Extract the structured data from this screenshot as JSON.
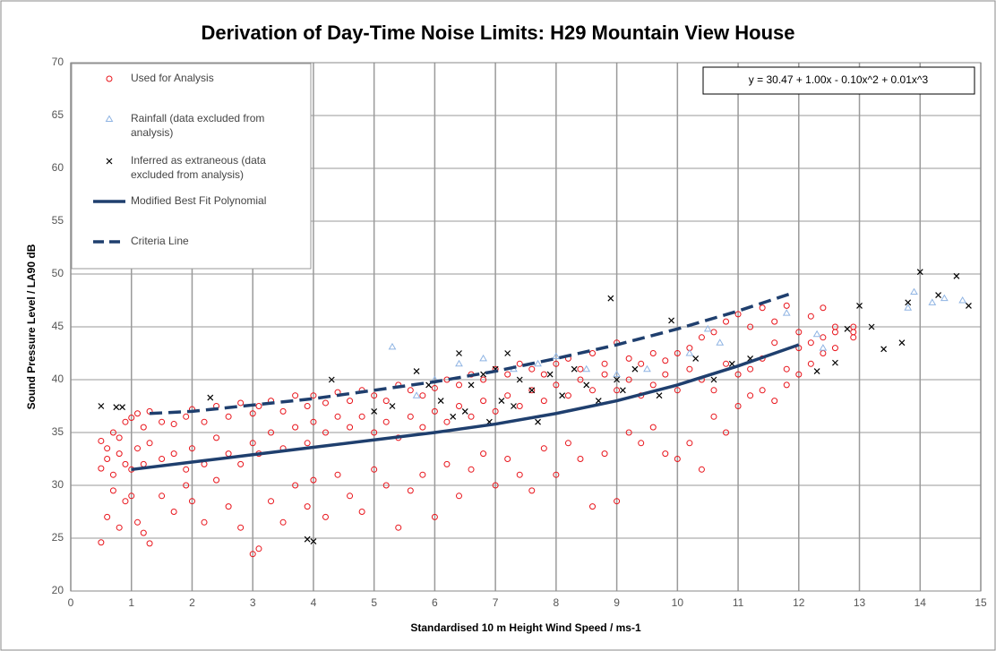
{
  "chart_data": {
    "type": "scatter",
    "title": "Derivation of Day-Time Noise Limits: H29 Mountain View House",
    "x_label": "Standardised 10 m Height Wind Speed / ms-1",
    "y_label": "Sound Pressure Level / LA90 dB",
    "annotation": "y = 30.47 + 1.00x - 0.10x^2 + 0.01x^3",
    "xlim": [
      0,
      15
    ],
    "xticks": [
      0,
      1,
      2,
      3,
      4,
      5,
      6,
      7,
      8,
      9,
      10,
      11,
      12,
      13,
      14,
      15
    ],
    "ylim": [
      20,
      70
    ],
    "yticks": [
      20,
      25,
      30,
      35,
      40,
      45,
      50,
      55,
      60,
      65,
      70
    ],
    "grid": true,
    "legend": "top-left",
    "series": [
      {
        "name": "Used for Analysis",
        "color": "#e8141b",
        "marker": "circle",
        "x": [
          0.5,
          0.6,
          0.7,
          0.8,
          0.9,
          1.0,
          1.1,
          1.2,
          1.3,
          1.5,
          1.7,
          1.9,
          2.0,
          2.2,
          2.4,
          2.6,
          2.8,
          3.0,
          3.1,
          3.3,
          3.5,
          3.7,
          3.9,
          4.0,
          4.2,
          4.4,
          4.6,
          4.8,
          5.0,
          5.2,
          5.4,
          5.6,
          5.8,
          6.0,
          6.2,
          6.4,
          6.6,
          6.8,
          7.0,
          7.2,
          7.4,
          7.6,
          7.8,
          8.0,
          8.2,
          8.4,
          8.6,
          8.8,
          9.0,
          9.2,
          9.4,
          9.6,
          9.8,
          10.0,
          10.2,
          10.4,
          10.6,
          10.8,
          11.0,
          11.2,
          11.4,
          11.6,
          11.8,
          12.0,
          12.2,
          12.4,
          12.6,
          12.9,
          0.5,
          0.6,
          0.7,
          0.8,
          0.9,
          1.0,
          1.1,
          1.2,
          1.3,
          1.5,
          1.7,
          1.9,
          2.0,
          2.2,
          2.4,
          2.6,
          2.8,
          3.0,
          3.1,
          3.3,
          3.5,
          3.7,
          3.9,
          4.0,
          4.2,
          4.4,
          4.6,
          4.8,
          5.0,
          5.2,
          5.4,
          5.6,
          5.8,
          6.0,
          6.2,
          6.4,
          6.6,
          6.8,
          7.0,
          7.2,
          7.4,
          7.6,
          7.8,
          8.0,
          8.2,
          8.4,
          8.6,
          8.8,
          9.0,
          9.2,
          9.4,
          9.6,
          9.8,
          10.0,
          10.2,
          10.4,
          10.6,
          10.8,
          11.0,
          11.2,
          11.4,
          11.6,
          11.8,
          12.0,
          12.2,
          12.4,
          12.6,
          12.9,
          0.5,
          0.6,
          0.7,
          0.8,
          0.9,
          1.0,
          1.1,
          1.2,
          1.3,
          1.5,
          1.7,
          1.9,
          2.0,
          2.2,
          2.4,
          2.6,
          2.8,
          3.0,
          3.1,
          3.3,
          3.5,
          3.7,
          3.9,
          4.0,
          4.2,
          4.4,
          4.6,
          4.8,
          5.0,
          5.2,
          5.4,
          5.6,
          5.8,
          6.0,
          6.2,
          6.4,
          6.6,
          6.8,
          7.0,
          7.2,
          7.4,
          7.6,
          7.8,
          8.0,
          8.2,
          8.4,
          8.6,
          8.8,
          9.0,
          9.2,
          9.4,
          9.6,
          9.8,
          10.0,
          10.2,
          10.4,
          10.6,
          10.8,
          11.0,
          11.2,
          11.4,
          11.6,
          11.8,
          12.0,
          12.2,
          12.4,
          12.6,
          12.9
        ],
        "values": [
          34.2,
          33.5,
          35.0,
          34.5,
          36.0,
          36.4,
          36.8,
          35.5,
          37.0,
          36.0,
          35.8,
          36.5,
          37.2,
          36.0,
          37.5,
          36.5,
          37.8,
          36.8,
          37.5,
          38.0,
          37.0,
          38.5,
          37.5,
          38.5,
          37.8,
          38.8,
          38.0,
          39.0,
          38.5,
          38.0,
          39.5,
          39.0,
          38.5,
          39.2,
          40.0,
          39.5,
          40.5,
          40.0,
          41.0,
          40.5,
          41.5,
          41.0,
          40.5,
          41.5,
          42.0,
          41.0,
          42.5,
          41.5,
          43.5,
          42.0,
          41.5,
          42.5,
          41.8,
          42.5,
          43.0,
          44.0,
          44.5,
          45.5,
          46.2,
          45.0,
          46.8,
          45.5,
          47.0,
          44.5,
          46.0,
          46.8,
          45.0,
          44.5,
          31.6,
          32.5,
          31.0,
          33.0,
          32.0,
          31.5,
          33.5,
          32.0,
          34.0,
          32.5,
          33.0,
          31.5,
          33.5,
          32.0,
          34.5,
          33.0,
          32.0,
          34.0,
          33.0,
          35.0,
          33.5,
          35.5,
          34.0,
          36.0,
          35.0,
          36.5,
          35.5,
          36.5,
          35.0,
          36.0,
          34.5,
          36.5,
          35.5,
          37.0,
          36.0,
          37.5,
          36.5,
          38.0,
          37.0,
          38.5,
          37.5,
          39.0,
          38.0,
          39.5,
          38.5,
          40.0,
          39.0,
          40.5,
          39.0,
          40.0,
          38.5,
          39.5,
          40.5,
          39.0,
          41.0,
          40.0,
          39.0,
          41.5,
          40.5,
          41.0,
          42.0,
          43.5,
          41.0,
          43.0,
          43.5,
          44.0,
          44.5,
          45.0,
          24.6,
          27.0,
          29.5,
          26.0,
          28.5,
          29.0,
          26.5,
          25.5,
          24.5,
          29.0,
          27.5,
          30.0,
          28.5,
          26.5,
          30.5,
          28.0,
          26.0,
          23.5,
          24.0,
          28.5,
          26.5,
          30.0,
          28.0,
          30.5,
          27.0,
          31.0,
          29.0,
          27.5,
          31.5,
          30.0,
          26.0,
          29.5,
          31.0,
          27.0,
          32.0,
          29.0,
          31.5,
          33.0,
          30.0,
          32.5,
          31.0,
          29.5,
          33.5,
          31.0,
          34.0,
          32.5,
          28.0,
          33.0,
          28.5,
          35.0,
          34.0,
          35.5,
          33.0,
          32.5,
          34.0,
          31.5,
          36.5,
          35.0,
          37.5,
          38.5,
          39.0,
          38.0,
          39.5,
          40.5,
          41.5,
          42.5,
          43.0,
          44.0
        ]
      },
      {
        "name": "Rainfall (data excluded from analysis)",
        "color": "#8fb4e3",
        "marker": "triangle",
        "x": [
          5.3,
          5.7,
          6.0,
          6.4,
          6.8,
          7.3,
          7.7,
          8.0,
          8.5,
          9.0,
          9.5,
          10.2,
          10.5,
          10.7,
          11.8,
          12.3,
          12.4,
          13.8,
          13.9,
          14.2,
          14.4,
          14.7
        ],
        "values": [
          43.1,
          38.5,
          40.0,
          41.5,
          42.0,
          41.0,
          41.5,
          42.2,
          41.0,
          40.5,
          41.0,
          42.5,
          44.8,
          43.5,
          46.3,
          44.3,
          43.0,
          46.8,
          48.3,
          47.3,
          47.7,
          47.5
        ]
      },
      {
        "name": "Inferred as extraneous (data excluded from analysis)",
        "color": "#000000",
        "marker": "x",
        "x": [
          0.5,
          0.75,
          0.85,
          2.3,
          3.9,
          4.0,
          4.3,
          5.0,
          5.3,
          5.7,
          5.9,
          6.1,
          6.3,
          6.4,
          6.5,
          6.6,
          6.8,
          6.9,
          7.0,
          7.1,
          7.2,
          7.3,
          7.4,
          7.6,
          7.7,
          7.9,
          8.1,
          8.3,
          8.5,
          8.7,
          8.9,
          9.0,
          9.1,
          9.3,
          9.7,
          9.9,
          10.3,
          10.6,
          10.9,
          11.2,
          12.3,
          12.6,
          12.8,
          13.0,
          13.2,
          13.4,
          13.7,
          13.8,
          14.0,
          14.3,
          14.6,
          14.8
        ],
        "values": [
          37.5,
          37.4,
          37.4,
          38.3,
          24.9,
          24.7,
          40.0,
          37.0,
          37.5,
          40.8,
          39.5,
          38.0,
          36.5,
          42.5,
          37.0,
          39.5,
          40.5,
          36.0,
          41.0,
          38.0,
          42.5,
          37.5,
          40.0,
          39.0,
          36.0,
          40.5,
          38.5,
          41.0,
          39.5,
          38.0,
          47.7,
          40.0,
          39.0,
          41.0,
          38.5,
          45.6,
          42.0,
          40.0,
          41.5,
          42.0,
          40.8,
          41.6,
          44.8,
          47.0,
          45.0,
          42.9,
          43.5,
          47.3,
          50.2,
          48.0,
          49.8,
          47.0
        ]
      },
      {
        "name": "Modified Best Fit Polynomial",
        "color": "#1f3f6e",
        "marker": "line",
        "x": [
          1,
          2,
          3,
          4,
          5,
          6,
          7,
          8,
          9,
          10,
          11,
          12
        ],
        "values": [
          31.5,
          32.2,
          32.9,
          33.6,
          34.3,
          35.0,
          35.8,
          36.8,
          38.0,
          39.5,
          41.3,
          43.3
        ]
      },
      {
        "name": "Criteria Line",
        "color": "#1f3f6e",
        "marker": "dashed",
        "x": [
          1.3,
          2,
          3,
          4,
          5,
          6,
          7,
          8,
          9,
          10,
          11,
          11.9
        ],
        "values": [
          36.8,
          37.0,
          37.6,
          38.2,
          39.0,
          39.8,
          40.8,
          42.0,
          43.3,
          44.8,
          46.5,
          48.2
        ]
      }
    ]
  }
}
